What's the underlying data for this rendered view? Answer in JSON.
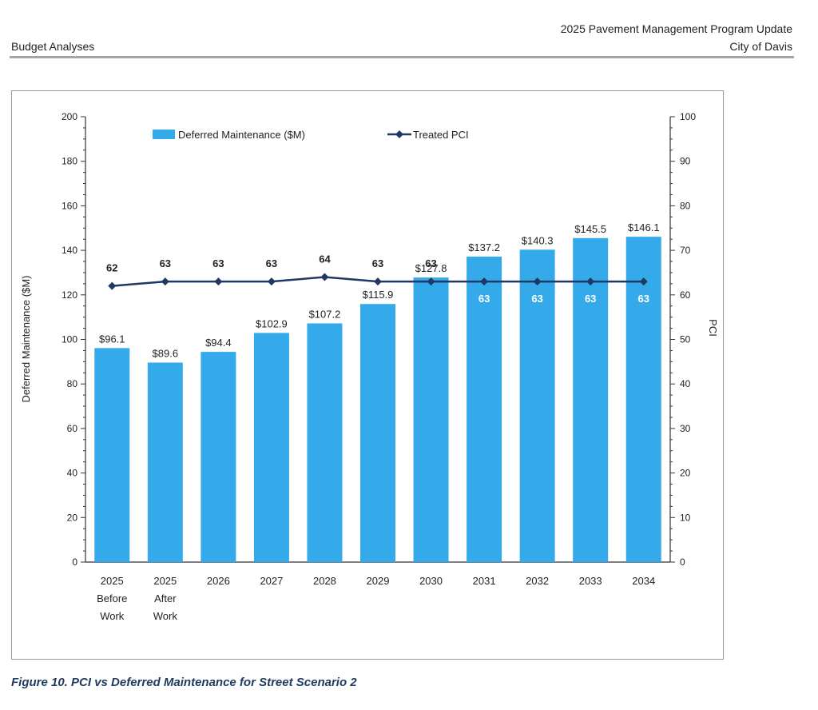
{
  "header": {
    "section": "Budget Analyses",
    "report_title": "2025 Pavement Management Program Update",
    "city": "City of Davis"
  },
  "caption": "Figure 10. PCI vs Deferred Maintenance for Street Scenario 2",
  "colors": {
    "bar": "#35aaea",
    "line": "#1f3864",
    "axis": "#333333"
  },
  "chart_data": {
    "type": "bar",
    "categories": [
      [
        "2025",
        "Before",
        "Work"
      ],
      [
        "2025",
        "After",
        "Work"
      ],
      [
        "2026"
      ],
      [
        "2027"
      ],
      [
        "2028"
      ],
      [
        "2029"
      ],
      [
        "2030"
      ],
      [
        "2031"
      ],
      [
        "2032"
      ],
      [
        "2033"
      ],
      [
        "2034"
      ]
    ],
    "series": [
      {
        "name": "Deferred Maintenance ($M)",
        "type": "bar",
        "axis": "left",
        "values": [
          96.1,
          89.6,
          94.4,
          102.9,
          107.2,
          115.9,
          127.8,
          137.2,
          140.3,
          145.5,
          146.1
        ],
        "labels": [
          "$96.1",
          "$89.6",
          "$94.4",
          "$102.9",
          "$107.2",
          "$115.9",
          "$127.8",
          "$137.2",
          "$140.3",
          "$145.5",
          "$146.1"
        ]
      },
      {
        "name": "Treated PCI",
        "type": "line",
        "axis": "right",
        "values": [
          62,
          63,
          63,
          63,
          64,
          63,
          63,
          63,
          63,
          63,
          63
        ]
      }
    ],
    "ylabel": "Deferred Maintenance ($M)",
    "y2label": "PCI",
    "ylim": [
      0,
      200
    ],
    "y2lim": [
      0,
      100
    ],
    "yticks": [
      0,
      20,
      40,
      60,
      80,
      100,
      120,
      140,
      160,
      180,
      200
    ],
    "y2ticks": [
      0,
      10,
      20,
      30,
      40,
      50,
      60,
      70,
      80,
      90,
      100
    ],
    "legend_position": "top",
    "grid": false
  }
}
